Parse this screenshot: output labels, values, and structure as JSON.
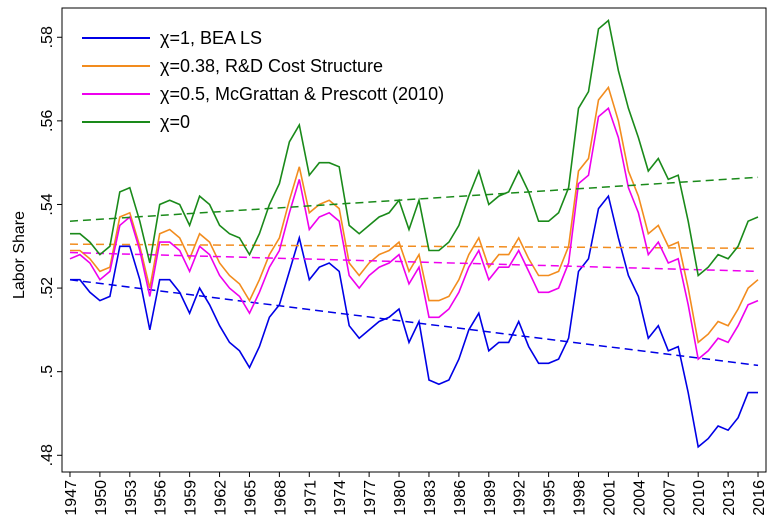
{
  "chart_data": {
    "type": "line",
    "y_label": "Labor Share",
    "x": [
      1947,
      1948,
      1949,
      1950,
      1951,
      1952,
      1953,
      1954,
      1955,
      1956,
      1957,
      1958,
      1959,
      1960,
      1961,
      1962,
      1963,
      1964,
      1965,
      1966,
      1967,
      1968,
      1969,
      1970,
      1971,
      1972,
      1973,
      1974,
      1975,
      1976,
      1977,
      1978,
      1979,
      1980,
      1981,
      1982,
      1983,
      1984,
      1985,
      1986,
      1987,
      1988,
      1989,
      1990,
      1991,
      1992,
      1993,
      1994,
      1995,
      1996,
      1997,
      1998,
      1999,
      2000,
      2001,
      2002,
      2003,
      2004,
      2005,
      2006,
      2007,
      2008,
      2009,
      2010,
      2011,
      2012,
      2013,
      2014,
      2015,
      2016
    ],
    "xlim": [
      1946.2,
      2016.8
    ],
    "xticks": [
      1947,
      1950,
      1953,
      1956,
      1959,
      1962,
      1965,
      1968,
      1971,
      1974,
      1977,
      1980,
      1983,
      1986,
      1989,
      1992,
      1995,
      1998,
      2001,
      2004,
      2007,
      2010,
      2013,
      2016
    ],
    "ylim": [
      0.476,
      0.587
    ],
    "yticks": [
      {
        "value": 0.48,
        "label": ".48"
      },
      {
        "value": 0.5,
        "label": ".5"
      },
      {
        "value": 0.52,
        "label": ".52"
      },
      {
        "value": 0.54,
        "label": ".54"
      },
      {
        "value": 0.56,
        "label": ".56"
      },
      {
        "value": 0.58,
        "label": ".58"
      }
    ],
    "legend": "top-left",
    "series": [
      {
        "name": "χ=1, BEA LS",
        "color": "#0000e6",
        "trend": [
          0.522,
          0.5015
        ],
        "values": [
          0.522,
          0.522,
          0.519,
          0.517,
          0.518,
          0.53,
          0.53,
          0.522,
          0.51,
          0.522,
          0.522,
          0.519,
          0.514,
          0.52,
          0.516,
          0.511,
          0.507,
          0.505,
          0.501,
          0.506,
          0.513,
          0.516,
          0.524,
          0.532,
          0.522,
          0.525,
          0.526,
          0.524,
          0.511,
          0.508,
          0.51,
          0.512,
          0.513,
          0.515,
          0.507,
          0.512,
          0.498,
          0.497,
          0.498,
          0.503,
          0.51,
          0.514,
          0.505,
          0.507,
          0.507,
          0.512,
          0.506,
          0.502,
          0.502,
          0.503,
          0.508,
          0.524,
          0.527,
          0.539,
          0.542,
          0.532,
          0.523,
          0.518,
          0.508,
          0.511,
          0.505,
          0.506,
          0.495,
          0.482,
          0.484,
          0.487,
          0.486,
          0.489,
          0.495,
          0.495
        ]
      },
      {
        "name": "χ=0.38, R&D Cost Structure",
        "color": "#f28c1e",
        "trend": [
          0.5305,
          0.5295
        ],
        "values": [
          0.529,
          0.529,
          0.527,
          0.524,
          0.525,
          0.537,
          0.538,
          0.53,
          0.52,
          0.533,
          0.534,
          0.532,
          0.527,
          0.533,
          0.531,
          0.526,
          0.523,
          0.521,
          0.517,
          0.522,
          0.528,
          0.532,
          0.541,
          0.549,
          0.538,
          0.54,
          0.541,
          0.539,
          0.526,
          0.523,
          0.526,
          0.528,
          0.529,
          0.531,
          0.524,
          0.528,
          0.517,
          0.517,
          0.518,
          0.522,
          0.528,
          0.532,
          0.525,
          0.528,
          0.528,
          0.532,
          0.527,
          0.523,
          0.523,
          0.524,
          0.53,
          0.548,
          0.551,
          0.565,
          0.568,
          0.56,
          0.548,
          0.542,
          0.533,
          0.535,
          0.53,
          0.531,
          0.52,
          0.507,
          0.509,
          0.512,
          0.511,
          0.515,
          0.52,
          0.522
        ]
      },
      {
        "name": "χ=0.5, McGrattan & Prescott (2010)",
        "color": "#ee00ee",
        "trend": [
          0.5285,
          0.524
        ],
        "values": [
          0.527,
          0.528,
          0.526,
          0.522,
          0.524,
          0.535,
          0.537,
          0.529,
          0.518,
          0.531,
          0.531,
          0.529,
          0.524,
          0.53,
          0.528,
          0.523,
          0.52,
          0.518,
          0.514,
          0.519,
          0.525,
          0.529,
          0.538,
          0.546,
          0.534,
          0.537,
          0.538,
          0.536,
          0.523,
          0.52,
          0.523,
          0.525,
          0.526,
          0.528,
          0.521,
          0.525,
          0.513,
          0.513,
          0.515,
          0.519,
          0.525,
          0.529,
          0.522,
          0.525,
          0.525,
          0.529,
          0.524,
          0.519,
          0.519,
          0.52,
          0.526,
          0.545,
          0.547,
          0.561,
          0.563,
          0.556,
          0.544,
          0.538,
          0.528,
          0.531,
          0.526,
          0.527,
          0.516,
          0.503,
          0.505,
          0.508,
          0.507,
          0.511,
          0.516,
          0.517
        ]
      },
      {
        "name": "χ=0",
        "color": "#1a8a1a",
        "trend": [
          0.536,
          0.5465
        ],
        "values": [
          0.533,
          0.533,
          0.531,
          0.528,
          0.53,
          0.543,
          0.544,
          0.536,
          0.526,
          0.54,
          0.541,
          0.54,
          0.535,
          0.542,
          0.54,
          0.535,
          0.533,
          0.532,
          0.528,
          0.533,
          0.54,
          0.545,
          0.555,
          0.559,
          0.547,
          0.55,
          0.55,
          0.549,
          0.535,
          0.533,
          0.535,
          0.537,
          0.538,
          0.541,
          0.534,
          0.541,
          0.529,
          0.529,
          0.531,
          0.535,
          0.542,
          0.548,
          0.54,
          0.542,
          0.543,
          0.548,
          0.543,
          0.536,
          0.536,
          0.538,
          0.544,
          0.563,
          0.567,
          0.582,
          0.584,
          0.572,
          0.563,
          0.556,
          0.548,
          0.551,
          0.546,
          0.547,
          0.536,
          0.523,
          0.525,
          0.528,
          0.527,
          0.53,
          0.536,
          0.537
        ]
      }
    ]
  }
}
